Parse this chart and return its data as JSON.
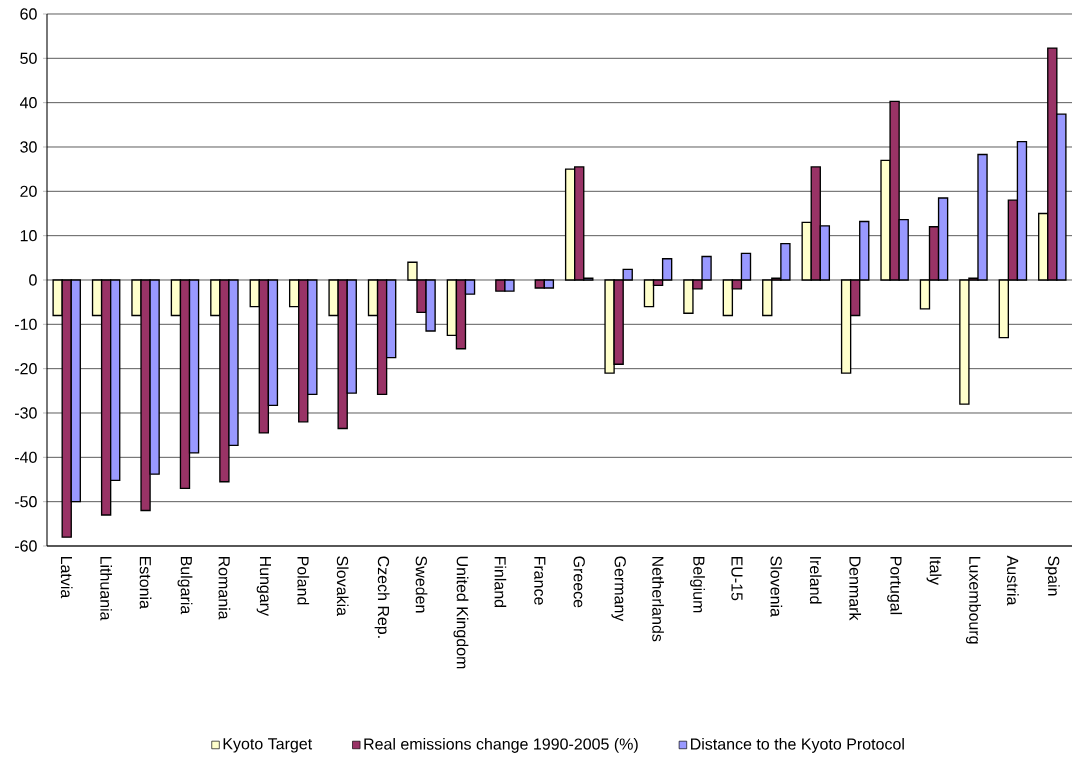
{
  "chart_data": {
    "type": "bar",
    "categories": [
      "Latvia",
      "Lithuania",
      "Estonia",
      "Bulgaria",
      "Romania",
      "Hungary",
      "Poland",
      "Slovakia",
      "Czech Rep.",
      "Sweden",
      "United Kingdom",
      "Finland",
      "France",
      "Greece",
      "Germany",
      "Netherlands",
      "Belgium",
      "EU-15",
      "Slovenia",
      "Ireland",
      "Denmark",
      "Portugal",
      "Italy",
      "Luxembourg",
      "Austria",
      "Spain"
    ],
    "series": [
      {
        "name": "Kyoto Target",
        "color": "#ffffcc",
        "values": [
          -8,
          -8,
          -8,
          -8,
          -8,
          -6,
          -6,
          -8,
          -8,
          4,
          -12.5,
          null,
          null,
          25,
          -21,
          -6,
          -7.5,
          -8,
          -8,
          13,
          -21,
          27,
          -6.5,
          -28,
          -13,
          15
        ]
      },
      {
        "name": "Real emissions change 1990-2005 (%)",
        "color": "#993366",
        "values": [
          -58,
          -53,
          -52,
          -47,
          -45.5,
          -34.5,
          -32,
          -33.5,
          -25.8,
          -7.3,
          -15.5,
          -2.5,
          -1.8,
          25.5,
          -19,
          -1.2,
          -2,
          -2,
          0.4,
          25.5,
          -8,
          40.3,
          12,
          0.4,
          18,
          52.3
        ]
      },
      {
        "name": "Distance to the Kyoto Protocol",
        "color": "#9999ff",
        "values": [
          -50,
          -45.2,
          -43.8,
          -39,
          -37.3,
          -28.3,
          -25.8,
          -25.5,
          -17.5,
          -11.5,
          -3.2,
          -2.5,
          -1.8,
          0.4,
          2.4,
          4.8,
          5.3,
          6,
          8.2,
          12.2,
          13.2,
          13.6,
          18.5,
          28.3,
          31.2,
          37.4
        ]
      }
    ],
    "ylim": [
      -60,
      60
    ],
    "yticks": [
      -60,
      -50,
      -40,
      -30,
      -20,
      -10,
      0,
      10,
      20,
      30,
      40,
      50,
      60
    ],
    "grid": "y",
    "legend": "bottom"
  }
}
